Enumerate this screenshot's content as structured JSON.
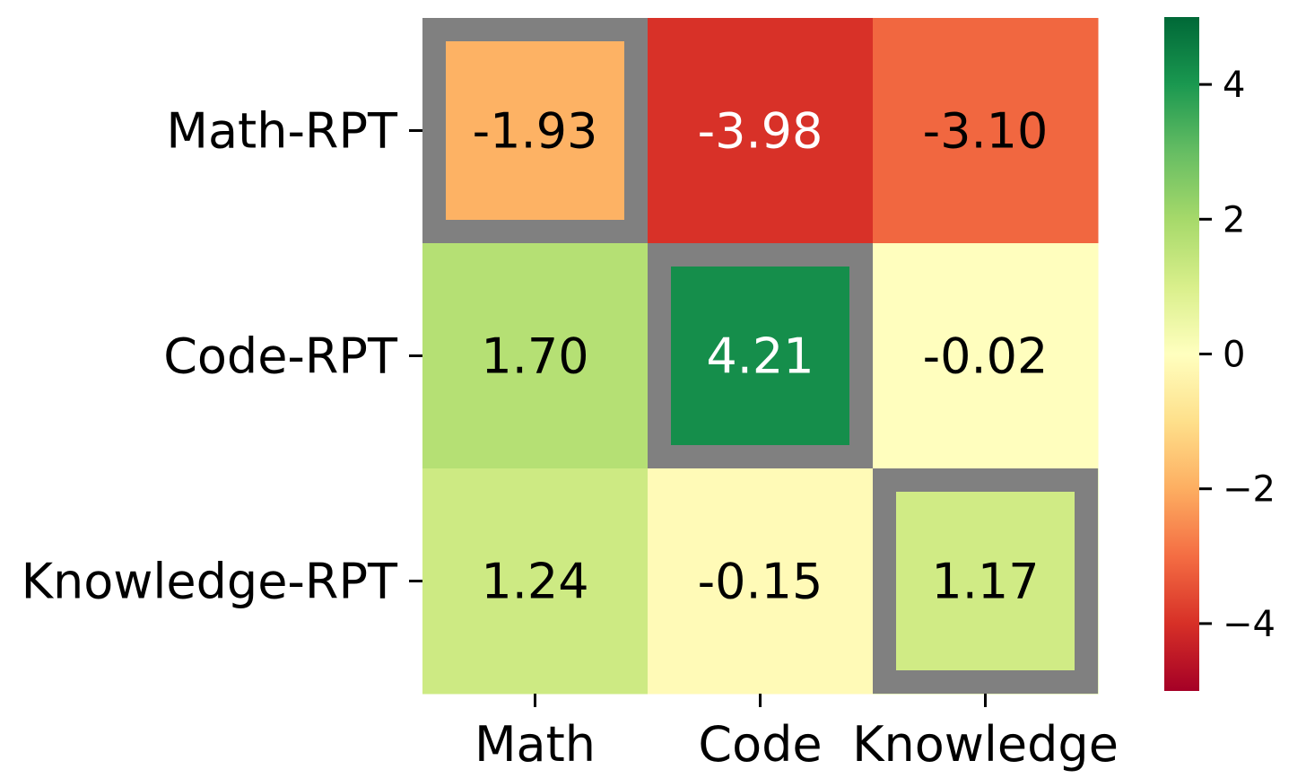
{
  "chart_data": {
    "type": "heatmap",
    "title": "",
    "xlabel": "",
    "ylabel": "",
    "x_categories": [
      "Math",
      "Code",
      "Knowledge"
    ],
    "y_categories": [
      "Math-RPT",
      "Code-RPT",
      "Knowledge-RPT"
    ],
    "values": [
      [
        -1.93,
        -3.98,
        -3.1
      ],
      [
        1.7,
        4.21,
        -0.02
      ],
      [
        1.24,
        -0.15,
        1.17
      ]
    ],
    "cell_labels": [
      [
        "-1.93",
        "-3.98",
        "-3.10"
      ],
      [
        "1.70",
        "4.21",
        "-0.02"
      ],
      [
        "1.24",
        "-0.15",
        "1.17"
      ]
    ],
    "highlighted_cells": [
      [
        0,
        0
      ],
      [
        1,
        1
      ],
      [
        2,
        2
      ]
    ],
    "highlight_color": "#808080",
    "colormap": "RdYlGn",
    "vmin": -5,
    "vmax": 5,
    "colorbar": {
      "ticks": [
        4,
        2,
        0,
        -2,
        -4
      ],
      "tick_labels": [
        "4",
        "2",
        "0",
        "−2",
        "−4"
      ]
    }
  }
}
